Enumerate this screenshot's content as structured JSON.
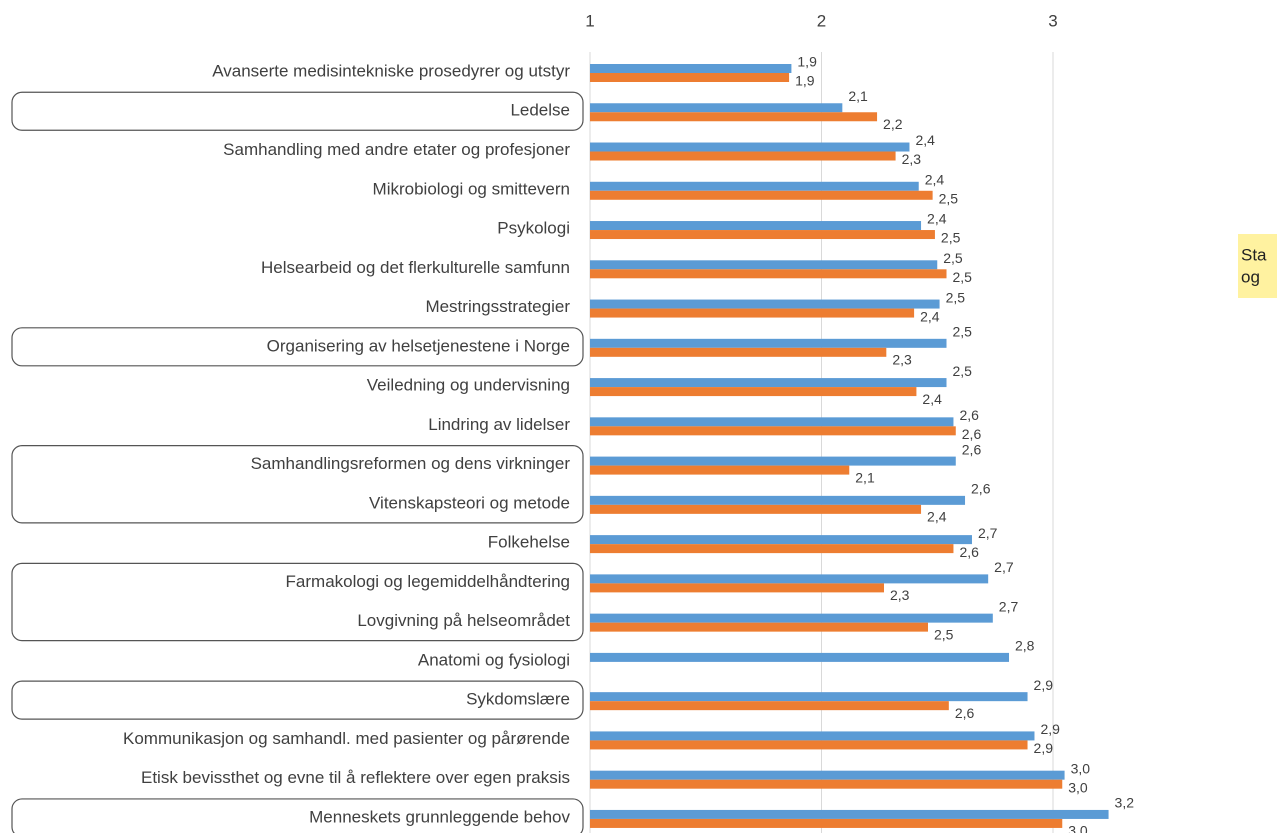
{
  "chart_data": {
    "type": "bar",
    "orientation": "horizontal",
    "categories": [
      "Avanserte medisintekniske prosedyrer og utstyr",
      "Ledelse",
      "Samhandling med andre etater og profesjoner",
      "Mikrobiologi og smittevern",
      "Psykologi",
      "Helsearbeid og det flerkulturelle samfunn",
      "Mestringsstrategier",
      "Organisering av helsetjenestene i Norge",
      "Veiledning og undervisning",
      "Lindring av lidelser",
      "Samhandlingsreformen og dens virkninger",
      "Vitenskapsteori og metode",
      "Folkehelse",
      "Farmakologi og legemiddelhåndtering",
      "Lovgivning på helseområdet",
      "Anatomi og fysiologi",
      "Sykdomslære",
      "Kommunikasjon og samhandl. med pasienter og pårørende",
      "Etisk bevissthet og evne til å reflektere over egen praksis",
      "Menneskets grunnleggende behov"
    ],
    "series": [
      {
        "color": "#5b9bd5",
        "values": [
          1.87,
          2.09,
          2.38,
          2.42,
          2.43,
          2.5,
          2.51,
          2.54,
          2.54,
          2.57,
          2.58,
          2.62,
          2.65,
          2.72,
          2.74,
          2.81,
          2.89,
          2.92,
          3.05,
          3.24
        ],
        "value_labels": [
          "1,9",
          "2,1",
          "2,4",
          "2,4",
          "2,4",
          "2,5",
          "2,5",
          "2,5",
          "2,5",
          "2,6",
          "2,6",
          "2,6",
          "2,7",
          "2,7",
          "2,7",
          "2,8",
          "2,9",
          "2,9",
          "3,0",
          "3,2"
        ]
      },
      {
        "color": "#ed7d31",
        "values": [
          1.86,
          2.24,
          2.32,
          2.48,
          2.49,
          2.54,
          2.4,
          2.28,
          2.41,
          2.58,
          2.12,
          2.43,
          2.57,
          2.27,
          2.46,
          null,
          2.55,
          2.89,
          3.04,
          3.04
        ],
        "value_labels": [
          "1,9",
          "2,2",
          "2,3",
          "2,5",
          "2,5",
          "2,5",
          "2,4",
          "2,3",
          "2,4",
          "2,6",
          "2,1",
          "2,4",
          "2,6",
          "2,3",
          "2,5",
          null,
          "2,6",
          "2,9",
          "3,0",
          "3,0"
        ]
      }
    ],
    "xlim": [
      1,
      3.3
    ],
    "xticks": [
      1,
      2,
      3
    ],
    "grid": true,
    "highlighted_groups": [
      [
        1,
        1
      ],
      [
        7,
        7
      ],
      [
        10,
        11
      ],
      [
        13,
        14
      ],
      [
        16,
        16
      ],
      [
        19,
        19
      ]
    ],
    "note": [
      "Sta",
      "og"
    ],
    "note_color": "#fff2a0"
  }
}
